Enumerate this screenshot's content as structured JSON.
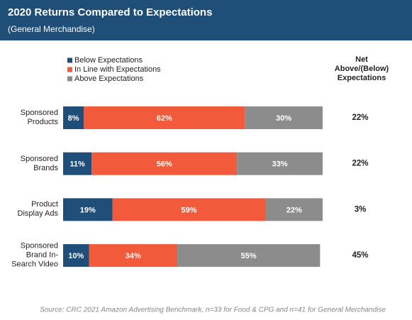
{
  "chart_data": {
    "type": "stacked-bar-horizontal",
    "title": "2020 Returns Compared to Expectations",
    "subtitle": "(General Merchandise)",
    "source": "Source: CRC 2021 Amazon Advertising Benchmark, n=33 for Food & CPG and n=41 for General Merchandise",
    "categories": [
      "Sponsored\nProducts",
      "Sponsored\nBrands",
      "Product\nDisplay Ads",
      "Sponsored\nBrand In-\nSearch Video"
    ],
    "xlim": [
      0,
      100
    ],
    "series": [
      {
        "name": "Below Expectations",
        "color": "#1f4e79",
        "values": [
          8,
          11,
          19,
          10
        ],
        "value_labels": [
          "8%",
          "11%",
          "19%",
          "10%"
        ]
      },
      {
        "name": "In Line with Expectations",
        "color": "#f15a3a",
        "values": [
          62,
          56,
          59,
          34
        ],
        "value_labels": [
          "62%",
          "56%",
          "59%",
          "34%"
        ]
      },
      {
        "name": "Above Expectations",
        "color": "#8c8c8c",
        "values": [
          30,
          33,
          22,
          55
        ],
        "value_labels": [
          "30%",
          "33%",
          "22%",
          "55%"
        ]
      }
    ],
    "net": {
      "title": "Net\nAbove/(Below)\nExpectations",
      "values": [
        22,
        22,
        3,
        45
      ],
      "value_labels": [
        "22%",
        "22%",
        "3%",
        "45%"
      ]
    }
  }
}
